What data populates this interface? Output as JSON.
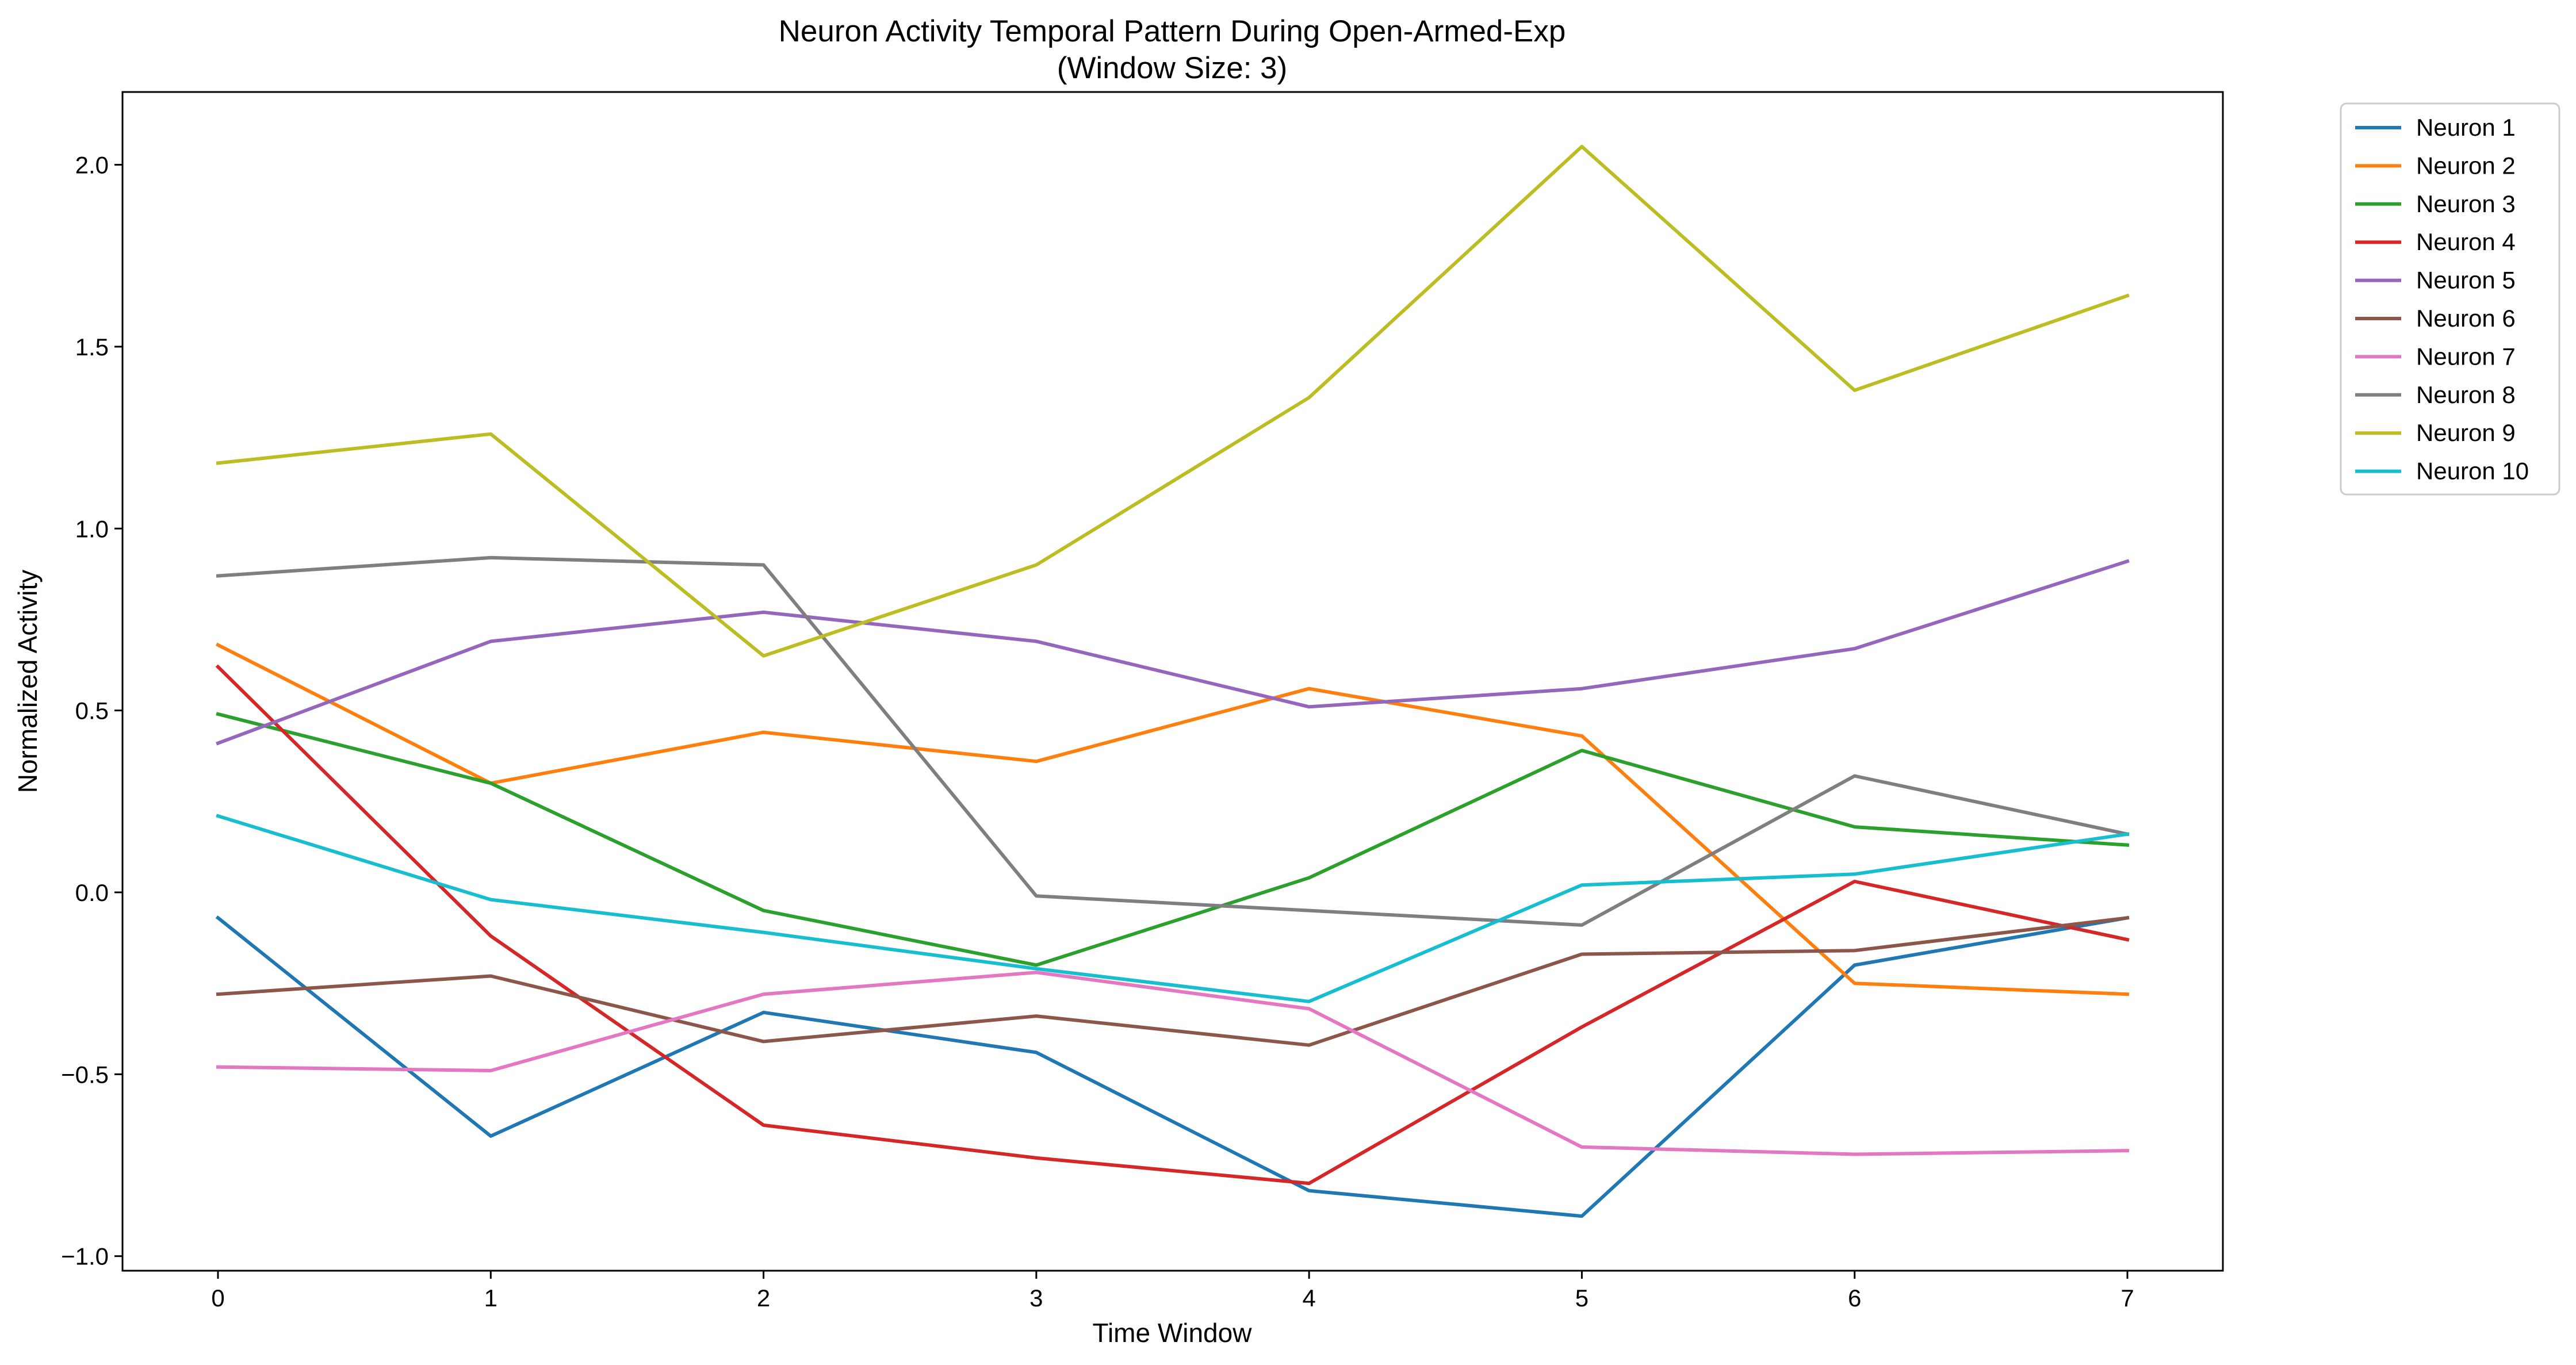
{
  "chart_data": {
    "type": "line",
    "title": "Neuron Activity Temporal Pattern During Open-Armed-Exp",
    "subtitle": "(Window Size: 3)",
    "xlabel": "Time Window",
    "ylabel": "Normalized Activity",
    "x": [
      0,
      1,
      2,
      3,
      4,
      5,
      6,
      7
    ],
    "x_ticks": [
      "0",
      "1",
      "2",
      "3",
      "4",
      "5",
      "6",
      "7"
    ],
    "y_ticks": [
      "−1.0",
      "−0.5",
      "0.0",
      "0.5",
      "1.0",
      "1.5",
      "2.0"
    ],
    "y_tick_values": [
      -1.0,
      -0.5,
      0.0,
      0.5,
      1.0,
      1.5,
      2.0
    ],
    "xlim": [
      -0.35,
      7.35
    ],
    "ylim": [
      -1.04,
      2.2
    ],
    "grid": false,
    "legend_position": "outside-top-right",
    "series": [
      {
        "name": "Neuron 1",
        "color": "#1f77b4",
        "values": [
          -0.07,
          -0.67,
          -0.33,
          -0.44,
          -0.82,
          -0.89,
          -0.2,
          -0.07
        ]
      },
      {
        "name": "Neuron 2",
        "color": "#ff7f0e",
        "values": [
          0.68,
          0.3,
          0.44,
          0.36,
          0.56,
          0.43,
          -0.25,
          -0.28
        ]
      },
      {
        "name": "Neuron 3",
        "color": "#2ca02c",
        "values": [
          0.49,
          0.3,
          -0.05,
          -0.2,
          0.04,
          0.39,
          0.18,
          0.13
        ]
      },
      {
        "name": "Neuron 4",
        "color": "#d62728",
        "values": [
          0.62,
          -0.12,
          -0.64,
          -0.73,
          -0.8,
          -0.37,
          0.03,
          -0.13
        ]
      },
      {
        "name": "Neuron 5",
        "color": "#9467bd",
        "values": [
          0.41,
          0.69,
          0.77,
          0.69,
          0.51,
          0.56,
          0.67,
          0.91
        ]
      },
      {
        "name": "Neuron 6",
        "color": "#8c564b",
        "values": [
          -0.28,
          -0.23,
          -0.41,
          -0.34,
          -0.42,
          -0.17,
          -0.16,
          -0.07
        ]
      },
      {
        "name": "Neuron 7",
        "color": "#e377c2",
        "values": [
          -0.48,
          -0.49,
          -0.28,
          -0.22,
          -0.32,
          -0.7,
          -0.72,
          -0.71
        ]
      },
      {
        "name": "Neuron 8",
        "color": "#7f7f7f",
        "values": [
          0.87,
          0.92,
          0.9,
          -0.01,
          -0.05,
          -0.09,
          0.32,
          0.16
        ]
      },
      {
        "name": "Neuron 9",
        "color": "#bcbd22",
        "values": [
          1.18,
          1.26,
          0.65,
          0.9,
          1.36,
          2.05,
          1.38,
          1.64
        ]
      },
      {
        "name": "Neuron 10",
        "color": "#17becf",
        "values": [
          0.21,
          -0.02,
          -0.11,
          -0.21,
          -0.3,
          0.02,
          0.05,
          0.16
        ]
      }
    ]
  }
}
